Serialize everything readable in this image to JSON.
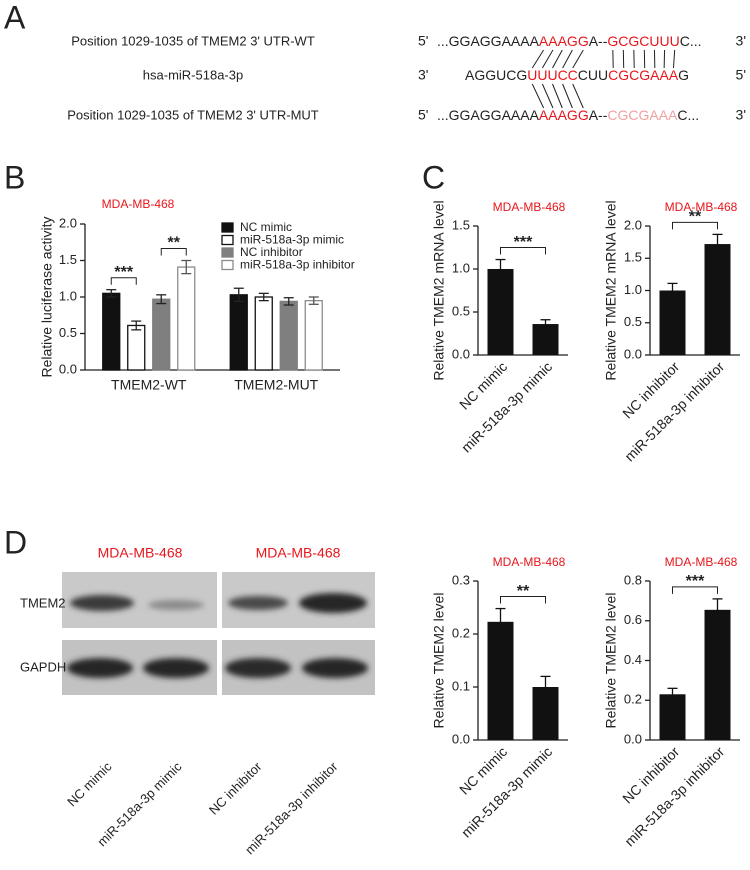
{
  "panel_labels": [
    "A",
    "B",
    "C",
    "D"
  ],
  "panel_a": {
    "rows": [
      {
        "label": "Position 1029-1035 of TMEM2 3' UTR-WT",
        "left_end": "5'",
        "right_end": "3'",
        "segments": [
          {
            "text": "...GGAGGAAAA",
            "color": "#222222"
          },
          {
            "text": "AAAGG",
            "color": "#e8161b"
          },
          {
            "text": "A--",
            "color": "#222222"
          },
          {
            "text": "GCGCUUU",
            "color": "#e8161b"
          },
          {
            "text": "C...",
            "color": "#222222"
          }
        ]
      },
      {
        "label": "hsa-miR-518a-3p",
        "left_end": "3'",
        "right_end": "5'",
        "segments": [
          {
            "text": "AGGUCG",
            "color": "#222222"
          },
          {
            "text": "UUUCC",
            "color": "#e8161b"
          },
          {
            "text": "CUU",
            "color": "#222222"
          },
          {
            "text": "CGCGAAA",
            "color": "#e8161b"
          },
          {
            "text": "G",
            "color": "#222222"
          }
        ]
      },
      {
        "label": "Position 1029-1035 of TMEM2 3' UTR-MUT",
        "left_end": "5'",
        "right_end": "3'",
        "segments": [
          {
            "text": "...GGAGGAAAA",
            "color": "#222222"
          },
          {
            "text": "AAAGG",
            "color": "#e8161b"
          },
          {
            "text": "A--",
            "color": "#222222"
          },
          {
            "text": "CGCGAAA",
            "color": "#f0a0a0"
          },
          {
            "text": "C...",
            "color": "#222222"
          }
        ]
      }
    ]
  },
  "panel_d_blot": {
    "cell_line_labels": [
      "MDA-MB-468",
      "MDA-MB-468"
    ],
    "bands": [
      "TMEM2",
      "GAPDH"
    ],
    "lanes": [
      "NC mimic",
      "miR-518a-3p mimic",
      "NC inhibitor",
      "miR-518a-3p inhibitor"
    ]
  },
  "chart_data": [
    {
      "type": "grouped-bar",
      "subtitle": "MDA-MB-468",
      "y_label": "Relative luciferase activity",
      "categories": [
        "TMEM2-WT",
        "TMEM2-MUT"
      ],
      "series": [
        {
          "name": "NC mimic",
          "fill": "#111111",
          "color": "#111111",
          "values": [
            1.05,
            1.03
          ],
          "errors": [
            0.05,
            0.09
          ]
        },
        {
          "name": "miR-518a-3p mimic",
          "fill": "#ffffff",
          "color": "#111111",
          "values": [
            0.61,
            1.0
          ],
          "errors": [
            0.06,
            0.05
          ]
        },
        {
          "name": "NC inhibitor",
          "fill": "#7f7f7f",
          "color": "#7f7f7f",
          "values": [
            0.97,
            0.94
          ],
          "errors": [
            0.06,
            0.05
          ]
        },
        {
          "name": "miR-518a-3p inhibitor",
          "fill": "#ffffff",
          "color": "#8c8c8c",
          "values": [
            1.41,
            0.95
          ],
          "errors": [
            0.09,
            0.05
          ]
        }
      ],
      "significance": [
        "***",
        "**"
      ],
      "ylim": [
        0,
        2
      ],
      "yticks": [
        {
          "value": 0,
          "label": "0.0"
        },
        0.5,
        {
          "value": 1,
          "label": "1.0"
        },
        1.5,
        {
          "value": 2,
          "label": "2.0"
        }
      ]
    },
    {
      "type": "bar",
      "subtitle": "MDA-MB-468",
      "y_label": "Relative TMEM2 mRNA level",
      "categories": [
        "NC mimic",
        "miR-518a-3p mimic"
      ],
      "values": [
        1.0,
        0.36
      ],
      "errors": [
        0.11,
        0.05
      ],
      "color": "#111111",
      "significance": "***",
      "ylim": [
        0,
        1.5
      ],
      "yticks": [
        {
          "value": 0,
          "label": "0.0"
        },
        0.5,
        {
          "value": 1,
          "label": "1.0"
        },
        1.5
      ]
    },
    {
      "type": "bar",
      "subtitle": "MDA-MB-468",
      "y_label": "Relative TMEM2 mRNA level",
      "categories": [
        "NC inhibitor",
        "miR-518a-3p inhibitor"
      ],
      "values": [
        1.0,
        1.72
      ],
      "errors": [
        0.11,
        0.15
      ],
      "color": "#111111",
      "significance": "**",
      "ylim": [
        0,
        2
      ],
      "yticks": [
        {
          "value": 0,
          "label": "0.0"
        },
        0.5,
        {
          "value": 1,
          "label": "1.0"
        },
        1.5,
        {
          "value": 2,
          "label": "2.0"
        }
      ]
    },
    {
      "type": "bar",
      "subtitle": "MDA-MB-468",
      "y_label": "Relative TMEM2 level",
      "categories": [
        "NC mimic",
        "miR-518a-3p mimic"
      ],
      "values": [
        0.223,
        0.1
      ],
      "errors": [
        0.025,
        0.02
      ],
      "color": "#111111",
      "significance": "**",
      "ylim": [
        0,
        0.3
      ],
      "yticks": [
        {
          "value": 0,
          "label": "0.0"
        },
        0.1,
        0.2,
        0.3
      ]
    },
    {
      "type": "bar",
      "subtitle": "MDA-MB-468",
      "y_label": "Relative TMEM2 level",
      "categories": [
        "NC inhibitor",
        "miR-518a-3p inhibitor"
      ],
      "values": [
        0.23,
        0.655
      ],
      "errors": [
        0.03,
        0.055
      ],
      "color": "#111111",
      "significance": "***",
      "ylim": [
        0,
        0.8
      ],
      "yticks": [
        {
          "value": 0,
          "label": "0.0"
        },
        0.2,
        0.4,
        0.6,
        0.8
      ]
    }
  ]
}
